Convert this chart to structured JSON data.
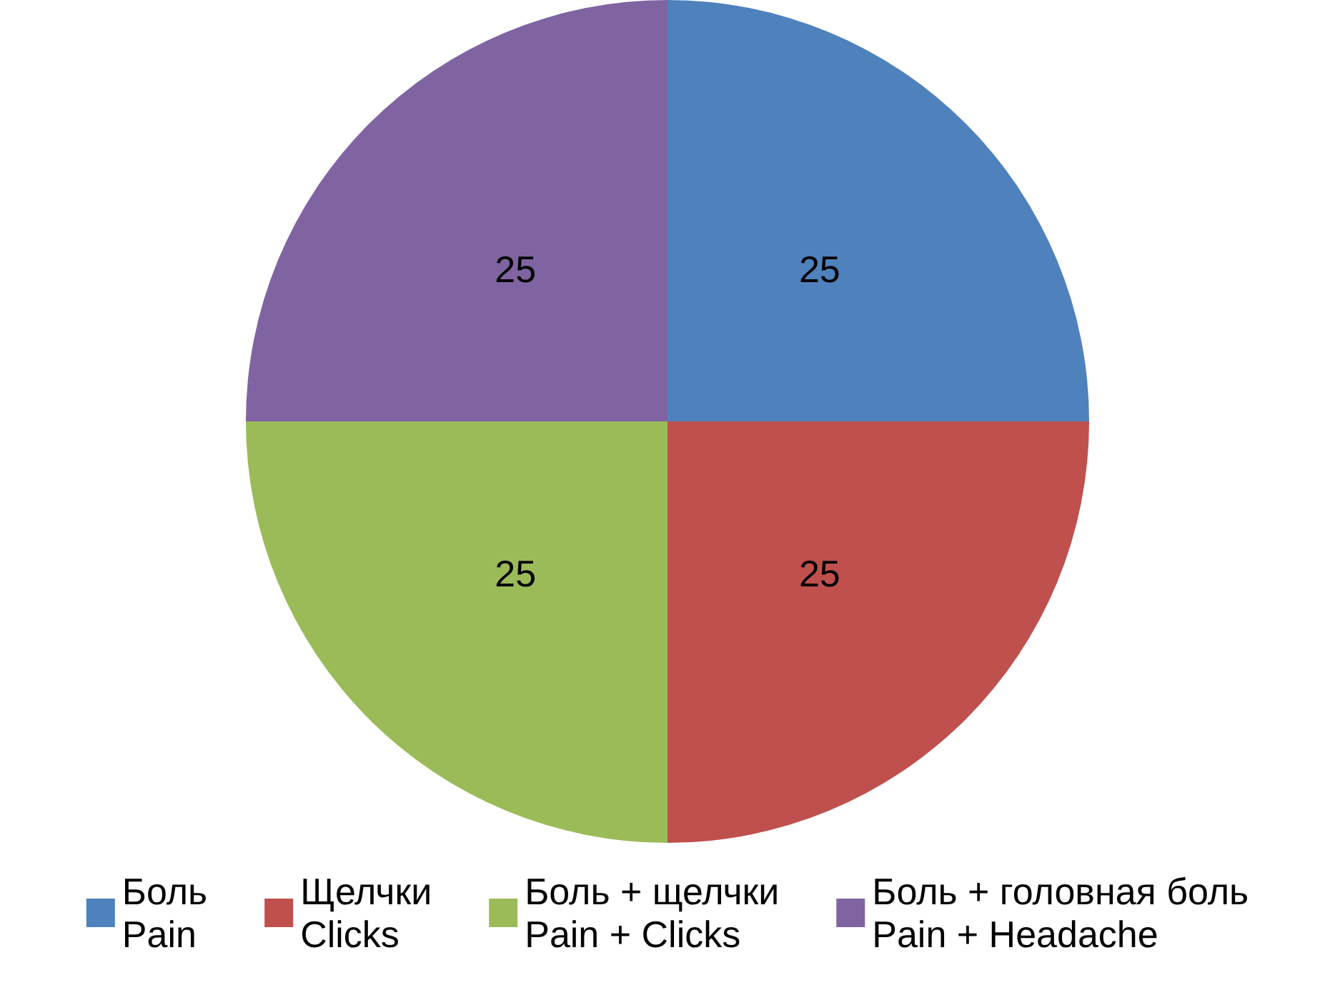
{
  "chart_data": {
    "type": "pie",
    "categories": [
      "Боль\nPain",
      "Щелчки\nClicks",
      "Боль + щелчки\nPain + Clicks",
      "Боль + головная боль\nPain + Headache"
    ],
    "values": [
      25,
      25,
      25,
      25
    ],
    "colors": [
      "#4f81bd",
      "#c0504d",
      "#9bbb59",
      "#8064a2"
    ],
    "data_labels": true,
    "legend": "bottom"
  }
}
